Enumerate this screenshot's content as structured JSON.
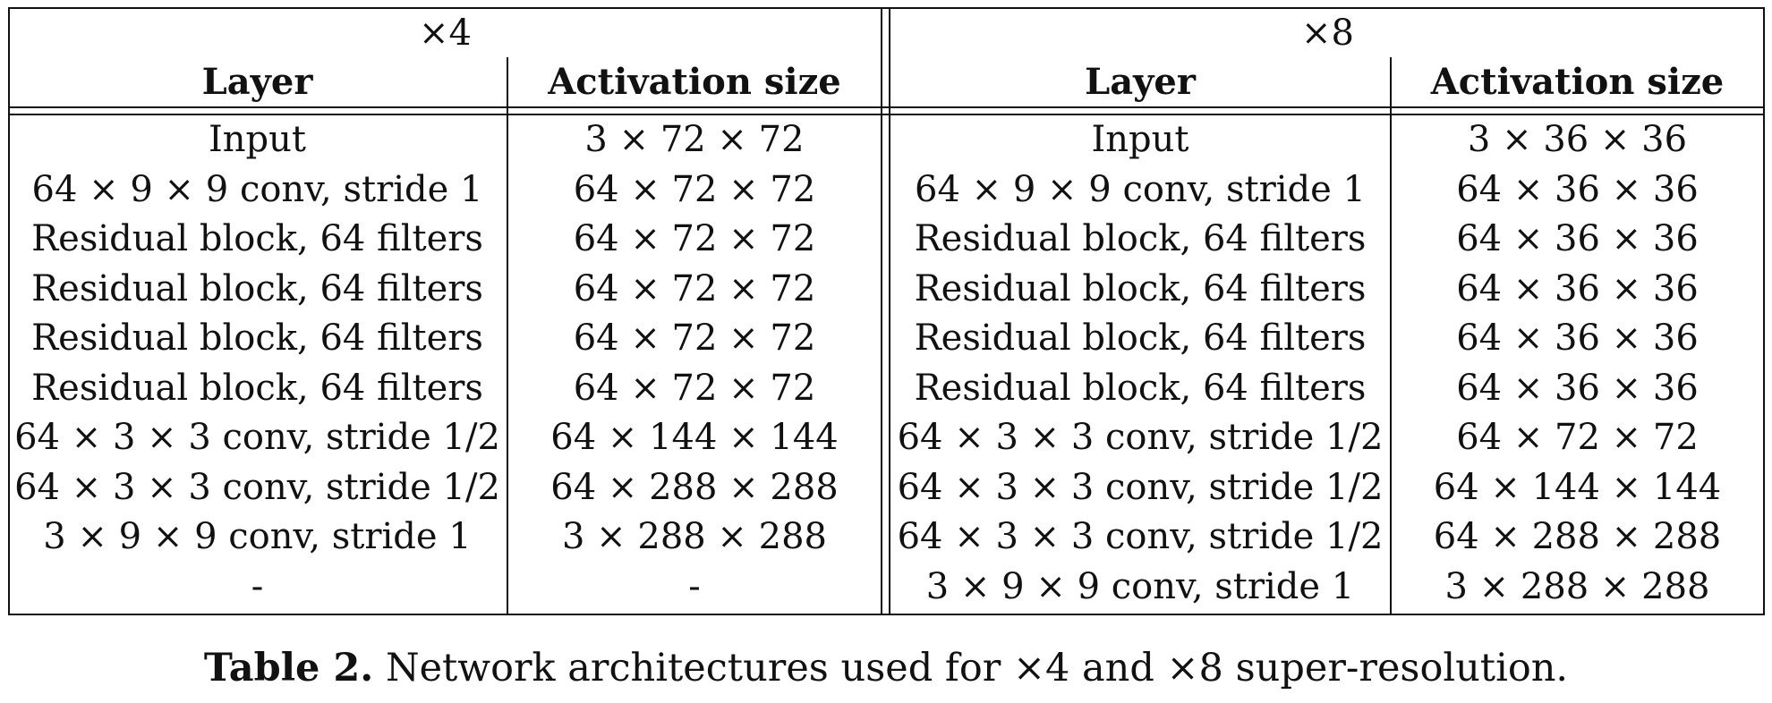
{
  "table": {
    "groups": [
      "×4",
      "×8"
    ],
    "headers": {
      "x4": [
        "Layer",
        "Activation size"
      ],
      "x8": [
        "Layer",
        "Activation size"
      ]
    },
    "x4_rows": [
      {
        "layer": "Input",
        "size": "3 × 72 × 72"
      },
      {
        "layer": "64 × 9 × 9 conv, stride 1",
        "size": "64 × 72 × 72"
      },
      {
        "layer": "Residual block, 64 filters",
        "size": "64 × 72 × 72"
      },
      {
        "layer": "Residual block, 64 filters",
        "size": "64 × 72 × 72"
      },
      {
        "layer": "Residual block, 64 filters",
        "size": "64 × 72 × 72"
      },
      {
        "layer": "Residual block, 64 filters",
        "size": "64 × 72 × 72"
      },
      {
        "layer": "64 × 3 × 3 conv, stride 1/2",
        "size": "64 × 144 × 144"
      },
      {
        "layer": "64 × 3 × 3 conv, stride 1/2",
        "size": "64 × 288 × 288"
      },
      {
        "layer": "3 × 9 × 9 conv, stride 1",
        "size": "3 × 288 × 288"
      },
      {
        "layer": "-",
        "size": "-"
      }
    ],
    "x8_rows": [
      {
        "layer": "Input",
        "size": "3 × 36 × 36"
      },
      {
        "layer": "64 × 9 × 9 conv, stride 1",
        "size": "64 × 36 × 36"
      },
      {
        "layer": "Residual block, 64 filters",
        "size": "64 × 36 × 36"
      },
      {
        "layer": "Residual block, 64 filters",
        "size": "64 × 36 × 36"
      },
      {
        "layer": "Residual block, 64 filters",
        "size": "64 × 36 × 36"
      },
      {
        "layer": "Residual block, 64 filters",
        "size": "64 × 36 × 36"
      },
      {
        "layer": "64 × 3 × 3 conv, stride 1/2",
        "size": "64 × 72 × 72"
      },
      {
        "layer": "64 × 3 × 3 conv, stride 1/2",
        "size": "64 × 144 × 144"
      },
      {
        "layer": "64 × 3 × 3 conv, stride 1/2",
        "size": "64 × 288 × 288"
      },
      {
        "layer": "3 × 9 × 9 conv, stride 1",
        "size": "3 × 288 × 288"
      }
    ]
  },
  "caption": {
    "label": "Table 2.",
    "text": " Network architectures used for ×4 and ×8 super-resolution."
  }
}
